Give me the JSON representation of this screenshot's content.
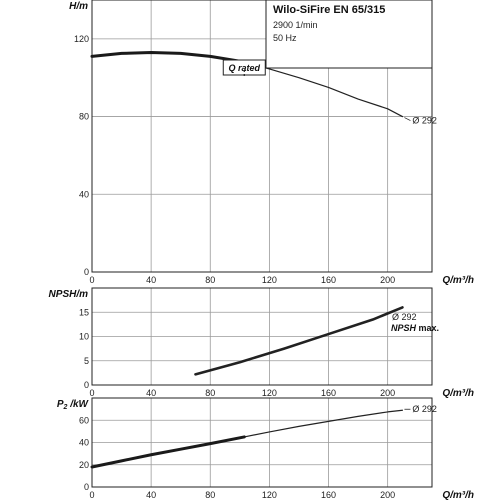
{
  "chart_data": {
    "title": "Wilo-SiFire EN 65/315",
    "speed": "2900 1/min",
    "frequency": "50 Hz",
    "rated_label": "Q rated",
    "q_rated": 103,
    "charts": [
      {
        "type": "line",
        "id": "head",
        "ylabel": "H/m",
        "xlabel": "Q/m³/h",
        "xlim": [
          0,
          230
        ],
        "ylim": [
          0,
          140
        ],
        "xticks": [
          0,
          40,
          80,
          120,
          160,
          200
        ],
        "yticks": [
          0,
          40,
          80,
          120
        ],
        "series": [
          {
            "name": "Ø 292",
            "x": [
              0,
              20,
              40,
              60,
              80,
              100,
              120,
              140,
              160,
              180,
              200,
              210
            ],
            "y": [
              111,
              112.5,
              113,
              112.5,
              111,
              108.5,
              104.5,
              100,
              95,
              89,
              84,
              80
            ]
          }
        ]
      },
      {
        "type": "line",
        "id": "npsh",
        "ylabel": "NPSH/m",
        "xlabel": "Q/m³/h",
        "xlim": [
          0,
          230
        ],
        "ylim": [
          0,
          20
        ],
        "xticks": [
          0,
          40,
          80,
          120,
          160,
          200
        ],
        "yticks": [
          0,
          5,
          10,
          15
        ],
        "series": [
          {
            "name": "Ø 292",
            "subname": "NPSH max.",
            "x": [
              70,
              100,
              130,
              160,
              190,
              210
            ],
            "y": [
              2.2,
              4.7,
              7.5,
              10.5,
              13.5,
              16
            ]
          }
        ]
      },
      {
        "type": "line",
        "id": "power",
        "ylabel_main": "P",
        "ylabel_sub": "2",
        "ylabel_rest": " /kW",
        "xlabel": "Q/m³/h",
        "xlim": [
          0,
          230
        ],
        "ylim": [
          0,
          80
        ],
        "xticks": [
          0,
          40,
          80,
          120,
          160,
          200
        ],
        "yticks": [
          0,
          20,
          40,
          60
        ],
        "series": [
          {
            "name": "Ø 292",
            "x": [
              0,
              20,
              40,
              60,
              80,
              103,
              120,
              140,
              160,
              180,
              200,
              210
            ],
            "y": [
              18,
              23.5,
              29,
              34,
              39,
              45,
              49.5,
              54.5,
              59,
              63.5,
              67.5,
              69
            ]
          }
        ]
      }
    ]
  }
}
